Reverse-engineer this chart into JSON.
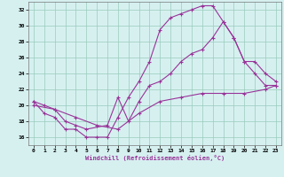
{
  "xlabel": "Windchill (Refroidissement éolien,°C)",
  "xlim": [
    -0.5,
    23.5
  ],
  "ylim": [
    15,
    33
  ],
  "yticks": [
    16,
    18,
    20,
    22,
    24,
    26,
    28,
    30,
    32
  ],
  "xticks": [
    0,
    1,
    2,
    3,
    4,
    5,
    6,
    7,
    8,
    9,
    10,
    11,
    12,
    13,
    14,
    15,
    16,
    17,
    18,
    19,
    20,
    21,
    22,
    23
  ],
  "background_color": "#d6f0f0",
  "line_color": "#993399",
  "grid_color": "#99ccbb",
  "curves": [
    {
      "x": [
        0,
        1,
        2,
        3,
        4,
        5,
        6,
        7,
        8,
        9,
        10,
        11,
        12,
        13,
        14,
        15,
        16,
        17,
        18,
        19,
        20,
        21,
        22,
        23
      ],
      "y": [
        20.5,
        19.0,
        18.5,
        17.0,
        17.0,
        16.0,
        16.0,
        16.0,
        18.5,
        21.0,
        23.0,
        25.5,
        29.5,
        31.0,
        31.5,
        32.0,
        32.5,
        32.5,
        30.5,
        28.5,
        25.5,
        24.0,
        22.5,
        22.5
      ]
    },
    {
      "x": [
        0,
        1,
        2,
        3,
        4,
        5,
        7,
        8,
        9,
        10,
        11,
        12,
        13,
        14,
        15,
        16,
        17,
        18,
        19,
        20,
        21,
        22,
        23
      ],
      "y": [
        20.5,
        20.0,
        19.5,
        18.0,
        17.5,
        17.0,
        17.5,
        21.0,
        18.0,
        20.5,
        22.5,
        23.0,
        24.0,
        25.5,
        26.5,
        27.0,
        28.5,
        30.5,
        28.5,
        25.5,
        25.5,
        24.0,
        23.0
      ]
    },
    {
      "x": [
        0,
        2,
        4,
        6,
        8,
        10,
        12,
        14,
        16,
        18,
        20,
        22,
        23
      ],
      "y": [
        20.0,
        19.5,
        18.5,
        17.5,
        17.0,
        19.0,
        20.5,
        21.0,
        21.5,
        21.5,
        21.5,
        22.0,
        22.5
      ]
    }
  ]
}
